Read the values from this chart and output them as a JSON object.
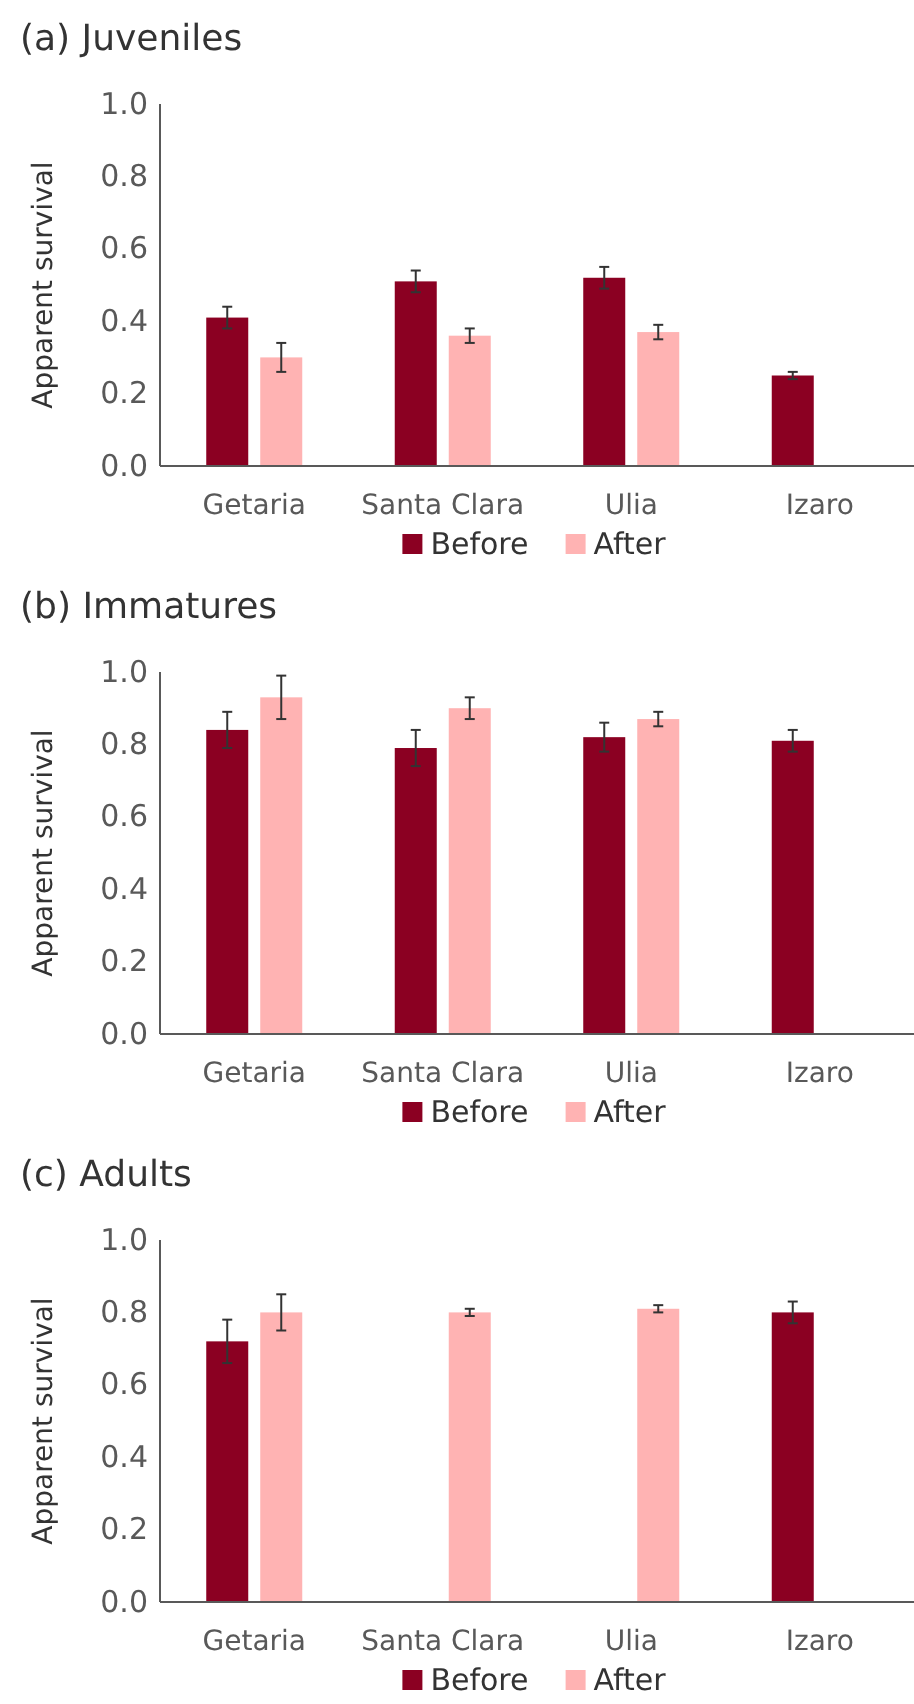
{
  "chart_data": [
    {
      "type": "bar",
      "title": "(a) Juveniles",
      "ylabel": "Apparent survival",
      "categories": [
        "Getaria",
        "Santa Clara",
        "Ulia",
        "Izaro"
      ],
      "ylim": [
        0,
        1
      ],
      "yticks": [
        {
          "value": 0,
          "label": "0.0"
        },
        {
          "value": 0.2,
          "label": "0.2"
        },
        {
          "value": 0.4,
          "label": "0.4"
        },
        {
          "value": 0.6,
          "label": "0.6"
        },
        {
          "value": 0.8,
          "label": "0.8"
        },
        {
          "value": 1,
          "label": "1.0"
        }
      ],
      "legend": "bottom",
      "series": [
        {
          "name": "Before",
          "color": "#8b0022",
          "values": [
            0.41,
            0.51,
            0.52,
            0.25
          ],
          "errors": [
            0.03,
            0.03,
            0.03,
            0.01
          ]
        },
        {
          "name": "After",
          "color": "#ffb3b3",
          "values": [
            0.3,
            0.36,
            0.37,
            null
          ],
          "errors": [
            0.04,
            0.02,
            0.02,
            null
          ]
        }
      ]
    },
    {
      "type": "bar",
      "title": "(b) Immatures",
      "ylabel": "Apparent survival",
      "categories": [
        "Getaria",
        "Santa Clara",
        "Ulia",
        "Izaro"
      ],
      "ylim": [
        0,
        1
      ],
      "yticks": [
        {
          "value": 0,
          "label": "0.0"
        },
        {
          "value": 0.2,
          "label": "0.2"
        },
        {
          "value": 0.4,
          "label": "0.4"
        },
        {
          "value": 0.6,
          "label": "0.6"
        },
        {
          "value": 0.8,
          "label": "0.8"
        },
        {
          "value": 1,
          "label": "1.0"
        }
      ],
      "legend": "bottom",
      "series": [
        {
          "name": "Before",
          "color": "#8b0022",
          "values": [
            0.84,
            0.79,
            0.82,
            0.81
          ],
          "errors": [
            0.05,
            0.05,
            0.04,
            0.03
          ]
        },
        {
          "name": "After",
          "color": "#ffb3b3",
          "values": [
            0.93,
            0.9,
            0.87,
            null
          ],
          "errors": [
            0.06,
            0.03,
            0.02,
            null
          ]
        }
      ]
    },
    {
      "type": "bar",
      "title": "(c) Adults",
      "ylabel": "Apparent survival",
      "categories": [
        "Getaria",
        "Santa Clara",
        "Ulia",
        "Izaro"
      ],
      "ylim": [
        0,
        1
      ],
      "yticks": [
        {
          "value": 0,
          "label": "0.0"
        },
        {
          "value": 0.2,
          "label": "0.2"
        },
        {
          "value": 0.4,
          "label": "0.4"
        },
        {
          "value": 0.6,
          "label": "0.6"
        },
        {
          "value": 0.8,
          "label": "0.8"
        },
        {
          "value": 1,
          "label": "1.0"
        }
      ],
      "legend": "bottom",
      "series": [
        {
          "name": "Before",
          "color": "#8b0022",
          "values": [
            0.72,
            null,
            null,
            0.8
          ],
          "errors": [
            0.06,
            null,
            null,
            0.03
          ]
        },
        {
          "name": "After",
          "color": "#ffb3b3",
          "values": [
            0.8,
            0.8,
            0.81,
            null
          ],
          "errors": [
            0.05,
            0.01,
            0.01,
            null
          ]
        }
      ]
    }
  ]
}
